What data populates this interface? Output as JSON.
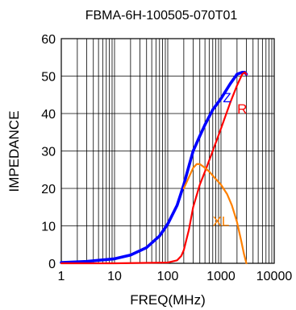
{
  "chart_data": {
    "type": "line",
    "title": "FBMA-6H-100505-070T01",
    "xlabel": "FREQ(MHz)",
    "ylabel": "IMPEDANCE",
    "x_scale": "log",
    "xlim": [
      1,
      10000
    ],
    "ylim": [
      0,
      60
    ],
    "x_ticks": [
      1,
      10,
      100,
      1000,
      10000
    ],
    "x_tick_labels": [
      "1",
      "10",
      "100",
      "1000",
      "10000"
    ],
    "y_ticks": [
      0,
      10,
      20,
      30,
      40,
      50,
      60
    ],
    "y_tick_labels": [
      "0",
      "10",
      "20",
      "30",
      "40",
      "50",
      "60"
    ],
    "grid": true,
    "series": [
      {
        "name": "Z",
        "color": "#0000ff",
        "x": [
          1,
          3,
          10,
          20,
          40,
          70,
          100,
          150,
          200,
          250,
          300,
          400,
          500,
          700,
          1000,
          1500,
          2000,
          2500,
          2800,
          3000
        ],
        "y": [
          0.2,
          0.5,
          1.2,
          2.2,
          4.2,
          7.3,
          10.5,
          15.5,
          21,
          26,
          30,
          34,
          37,
          41,
          44,
          48,
          50.5,
          51,
          51,
          50.5
        ]
      },
      {
        "name": "R",
        "color": "#ff0000",
        "x": [
          1,
          10,
          100,
          150,
          180,
          200,
          250,
          300,
          400,
          500,
          700,
          1000,
          1500,
          2000,
          2500,
          2800,
          3000
        ],
        "y": [
          0,
          0,
          0.2,
          0.8,
          2,
          3.5,
          9,
          15,
          21,
          24.5,
          30,
          36,
          43,
          47.5,
          50.5,
          51,
          50.5
        ]
      },
      {
        "name": "XL",
        "color": "#ff8000",
        "x": [
          200,
          250,
          300,
          350,
          400,
          500,
          600,
          800,
          1000,
          1300,
          1600,
          2000,
          2400,
          2700,
          3000
        ],
        "y": [
          20,
          23,
          25.5,
          26.5,
          26.5,
          25.5,
          24.5,
          22.5,
          21,
          18.5,
          15.5,
          11,
          6,
          2.5,
          0
        ]
      }
    ],
    "series_labels": [
      {
        "text": "Z",
        "color": "#0000ff",
        "x": 1300,
        "y": 43
      },
      {
        "text": "R",
        "color": "#ff0000",
        "x": 2500,
        "y": 40
      },
      {
        "text": "XL",
        "color": "#ff8000",
        "x": 1000,
        "y": 10
      }
    ]
  }
}
